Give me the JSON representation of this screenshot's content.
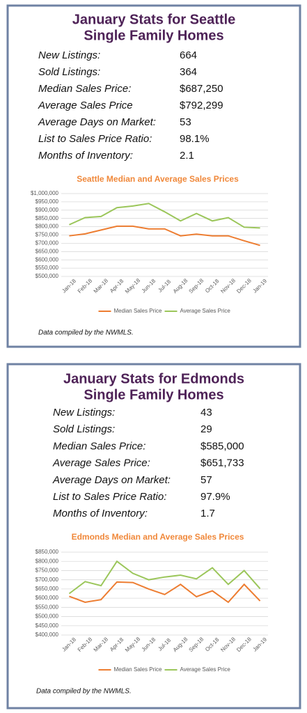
{
  "panels": [
    {
      "title_lines": [
        "January Stats for Seattle",
        "Single Family Homes"
      ],
      "stats": [
        {
          "label": "New Listings:",
          "value": "664"
        },
        {
          "label": "Sold Listings:",
          "value": "364"
        },
        {
          "label": "Median Sales Price:",
          "value": "$687,250"
        },
        {
          "label": "Average Sales Price",
          "value": "$792,299"
        },
        {
          "label": "Average Days on Market:",
          "value": "53"
        },
        {
          "label": "List to Sales Price Ratio:",
          "value": "98.1%"
        },
        {
          "label": "Months of Inventory:",
          "value": "2.1"
        }
      ],
      "note": "Data compiled by the NWMLS."
    },
    {
      "title_lines": [
        "January Stats for Edmonds",
        "Single Family Homes"
      ],
      "stats": [
        {
          "label": "New Listings:",
          "value": "43"
        },
        {
          "label": "Sold Listings:",
          "value": "29"
        },
        {
          "label": "Median Sales Price:",
          "value": "$585,000"
        },
        {
          "label": "Average Sales Price:",
          "value": "$651,733"
        },
        {
          "label": "Average Days on Market:",
          "value": "57"
        },
        {
          "label": "List to Sales Price Ratio:",
          "value": "97.9%"
        },
        {
          "label": "Months of Inventory:",
          "value": "1.7"
        }
      ],
      "note": "Data compiled by the NWMLS."
    }
  ],
  "chart_data": [
    {
      "type": "line",
      "title": "Seattle Median and Average Sales Prices",
      "categories": [
        "Jan-18",
        "Feb-18",
        "Mar-18",
        "Apr-18",
        "May-18",
        "Jun-18",
        "Jul-18",
        "Aug-18",
        "Sep-18",
        "Oct-18",
        "Nov-18",
        "Dec-18",
        "Jan-19"
      ],
      "series": [
        {
          "name": "Median Sales Price",
          "color": "#ed7d31",
          "values": [
            745000,
            757000,
            780000,
            803000,
            803000,
            787000,
            787000,
            745000,
            755000,
            745000,
            745000,
            715000,
            687250
          ]
        },
        {
          "name": "Average Sales Price",
          "color": "#9bc65a",
          "values": [
            812000,
            855000,
            862000,
            915000,
            925000,
            940000,
            890000,
            835000,
            880000,
            835000,
            855000,
            797000,
            792299
          ]
        }
      ],
      "ylim": [
        500000,
        1000000
      ],
      "yticks": [
        {
          "value": 500000,
          "label": "$500,000"
        },
        {
          "value": 550000,
          "label": "$550,000"
        },
        {
          "value": 600000,
          "label": "$600,000"
        },
        {
          "value": 650000,
          "label": "$650,000"
        },
        {
          "value": 700000,
          "label": "$700,000"
        },
        {
          "value": 750000,
          "label": "$750,000"
        },
        {
          "value": 800000,
          "label": "$800,000"
        },
        {
          "value": 850000,
          "label": "$850,000"
        },
        {
          "value": 900000,
          "label": "$900,000"
        },
        {
          "value": 950000,
          "label": "$950,000"
        },
        {
          "value": 1000000,
          "label": "$1,000,000"
        }
      ],
      "grid": true
    },
    {
      "type": "line",
      "title": "Edmonds Median and Average Sales Prices",
      "categories": [
        "Jan-18",
        "Feb-18",
        "Mar-18",
        "Apr-18",
        "May-18",
        "Jun-18",
        "Jul-18",
        "Aug-18",
        "Sep-18",
        "Oct-18",
        "Nov-18",
        "Dec-18",
        "Jan-19"
      ],
      "series": [
        {
          "name": "Median Sales Price",
          "color": "#ed7d31",
          "values": [
            610000,
            578000,
            592000,
            688000,
            685000,
            650000,
            620000,
            675000,
            608000,
            640000,
            578000,
            675000,
            585000
          ]
        },
        {
          "name": "Average Sales Price",
          "color": "#9bc65a",
          "values": [
            625000,
            690000,
            668000,
            800000,
            735000,
            700000,
            715000,
            725000,
            705000,
            765000,
            675000,
            750000,
            651733
          ]
        }
      ],
      "ylim": [
        400000,
        850000
      ],
      "yticks": [
        {
          "value": 400000,
          "label": "$400,000"
        },
        {
          "value": 450000,
          "label": "$450,000"
        },
        {
          "value": 500000,
          "label": "$500,000"
        },
        {
          "value": 550000,
          "label": "$550,000"
        },
        {
          "value": 600000,
          "label": "$600,000"
        },
        {
          "value": 650000,
          "label": "$650,000"
        },
        {
          "value": 700000,
          "label": "$700,000"
        },
        {
          "value": 750000,
          "label": "$750,000"
        },
        {
          "value": 800000,
          "label": "$800,000"
        },
        {
          "value": 850000,
          "label": "$850,000"
        }
      ],
      "grid": true
    }
  ]
}
